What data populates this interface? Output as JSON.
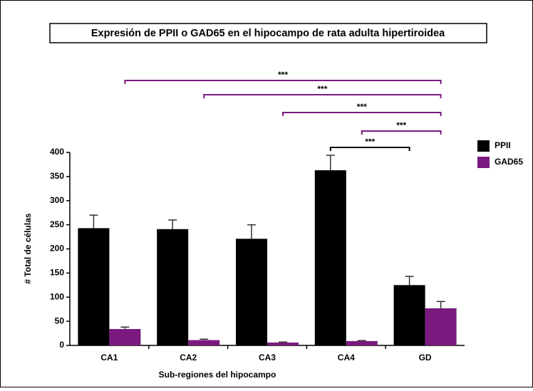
{
  "chart_data": {
    "type": "bar",
    "title": "Expresión de PPII o GAD65 en el hipocampo de rata adulta hipertiroidea",
    "x_label": "Sub-regiones del hipocampo",
    "y_label": "# Total de células",
    "categories": [
      "CA1",
      "CA2",
      "CA3",
      "CA4",
      "GD"
    ],
    "series": [
      {
        "name": "PPII",
        "color": "#000000",
        "values": [
          243,
          241,
          221,
          363,
          125
        ],
        "errors": [
          27,
          19,
          29,
          31,
          18
        ]
      },
      {
        "name": "GAD65",
        "color": "#7a1a7e",
        "values": [
          34,
          11,
          6,
          9,
          77
        ],
        "errors": [
          4,
          2,
          1,
          1,
          14
        ]
      }
    ],
    "ylim": [
      0,
      400
    ],
    "yticks": [
      0,
      50,
      100,
      150,
      200,
      250,
      300,
      350,
      400
    ],
    "legend": "right",
    "annotations": [
      {
        "text": "***",
        "series": "GAD65",
        "from": "CA1",
        "to": "GD"
      },
      {
        "text": "***",
        "series": "GAD65",
        "from": "CA2",
        "to": "GD"
      },
      {
        "text": "***",
        "series": "GAD65",
        "from": "CA3",
        "to": "GD"
      },
      {
        "text": "***",
        "series": "GAD65",
        "from": "CA4",
        "to": "GD"
      },
      {
        "text": "***",
        "series": "PPII",
        "from": "CA4",
        "to": "GD"
      }
    ]
  }
}
